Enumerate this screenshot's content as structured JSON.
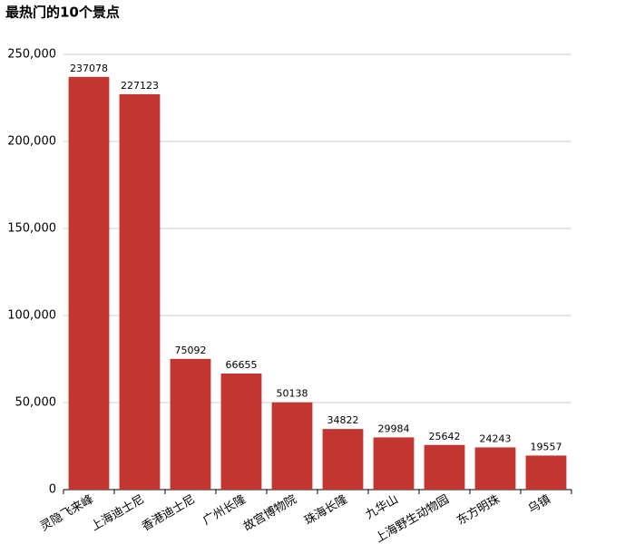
{
  "chart_data": {
    "type": "bar",
    "title": "最热门的10个景点",
    "categories": [
      "灵隐飞来峰",
      "上海迪士尼",
      "香港迪士尼",
      "广州长隆",
      "故宫博物院",
      "珠海长隆",
      "九华山",
      "上海野生动物园",
      "东方明珠",
      "乌镇"
    ],
    "values": [
      237078,
      227123,
      75092,
      66655,
      50138,
      34822,
      29984,
      25642,
      24243,
      19557
    ],
    "color": "#c23531",
    "ylim": [
      0,
      250000
    ],
    "yticks": [
      0,
      {
        "value": 50000,
        "label": "50,000"
      },
      {
        "value": 100000,
        "label": "100,000"
      },
      {
        "value": 150000,
        "label": "150,000"
      },
      {
        "value": 200000,
        "label": "200,000"
      },
      {
        "value": 250000,
        "label": "250,000"
      }
    ],
    "grid": true
  }
}
